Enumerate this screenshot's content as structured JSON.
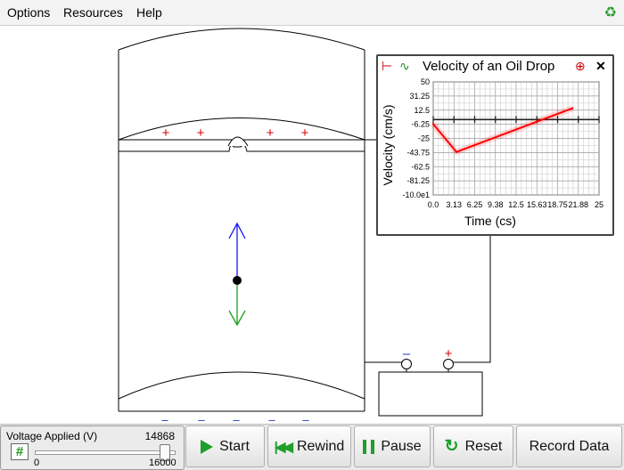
{
  "menu": {
    "items": [
      "Options",
      "Resources",
      "Help"
    ]
  },
  "apparatus": {
    "top_plate_charges": [
      "+",
      "+",
      "+",
      "+"
    ],
    "bottom_plate_charges": [
      "–",
      "–",
      "–",
      "–",
      "–"
    ],
    "battery_negative": "–",
    "battery_positive": "+",
    "colors": {
      "upward_force": "#1515ff",
      "downward_force": "#1aa11a",
      "positive": "#dd0000",
      "negative": "#2233cc"
    }
  },
  "chart_data": {
    "type": "line",
    "title": "Velocity of an Oil Drop",
    "xlabel": "Time (cs)",
    "ylabel": "Velocity (cm/s)",
    "x_ticks": [
      "0.0",
      "3.13",
      "6.25",
      "9.38",
      "12.5",
      "15.63",
      "18.75",
      "21.88",
      "25"
    ],
    "y_ticks": [
      "50",
      "31.25",
      "12.5",
      "-6.25",
      "-25",
      "-43.75",
      "-62.5",
      "-81.25",
      "-10.0e1"
    ],
    "xlim": [
      0,
      25
    ],
    "ylim": [
      -100,
      50
    ],
    "grid": true,
    "series": [
      {
        "color": "#ff0000",
        "points": [
          [
            0,
            -6
          ],
          [
            3.5,
            -43
          ],
          [
            21,
            15
          ]
        ]
      }
    ]
  },
  "controls": {
    "voltage_label": "Voltage Applied (V)",
    "voltage_value": "14868",
    "voltage_min": "0",
    "voltage_max": "16000",
    "voltage_fraction": 0.929,
    "buttons": {
      "start": "Start",
      "rewind": "Rewind",
      "pause": "Pause",
      "reset": "Reset",
      "record": "Record Data"
    }
  }
}
